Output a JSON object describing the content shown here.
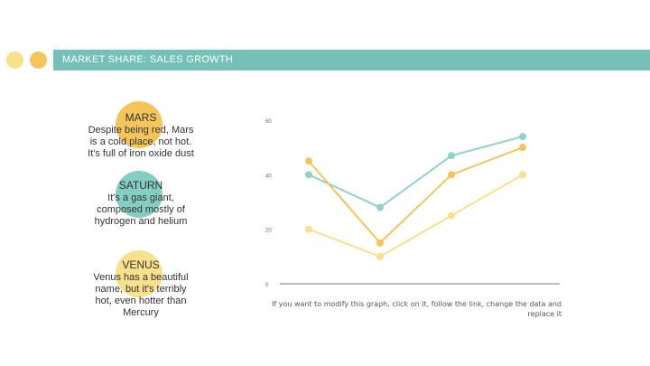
{
  "header": {
    "title": "MARKET SHARE: SALES GROWTH"
  },
  "colors": {
    "accent_teal": "#76c1b7",
    "yellow_light": "#f9e08c",
    "yellow_dark": "#f5c55c",
    "teal_light": "#86cdc3"
  },
  "planets": [
    {
      "name": "MARS",
      "description": "Despite being red, Mars is a cold place, not hot. It's full of iron oxide dust"
    },
    {
      "name": "SATURN",
      "description": "It's a gas giant, composed mostly of hydrogen and helium"
    },
    {
      "name": "VENUS",
      "description": "Venus has a beautiful name, but it's terribly hot, even hotter than Mercury"
    }
  ],
  "chart_data": {
    "type": "line",
    "x": [
      1,
      2,
      3,
      4
    ],
    "ylim": [
      0,
      60
    ],
    "yticks": [
      0,
      20,
      40,
      60
    ],
    "ytick_labels": [
      "0",
      "20",
      "40",
      "60"
    ],
    "grid": false,
    "legend": "none",
    "series": [
      {
        "color": "#8fd3ca",
        "values": [
          40,
          28,
          47,
          54
        ]
      },
      {
        "color": "#f5c55c",
        "values": [
          45,
          15,
          40,
          50
        ]
      },
      {
        "color": "#f9e08c",
        "values": [
          20,
          10,
          25,
          40
        ]
      }
    ]
  },
  "footnote": "If you want to modify this graph, click on it, follow the link, change the data and replace it"
}
